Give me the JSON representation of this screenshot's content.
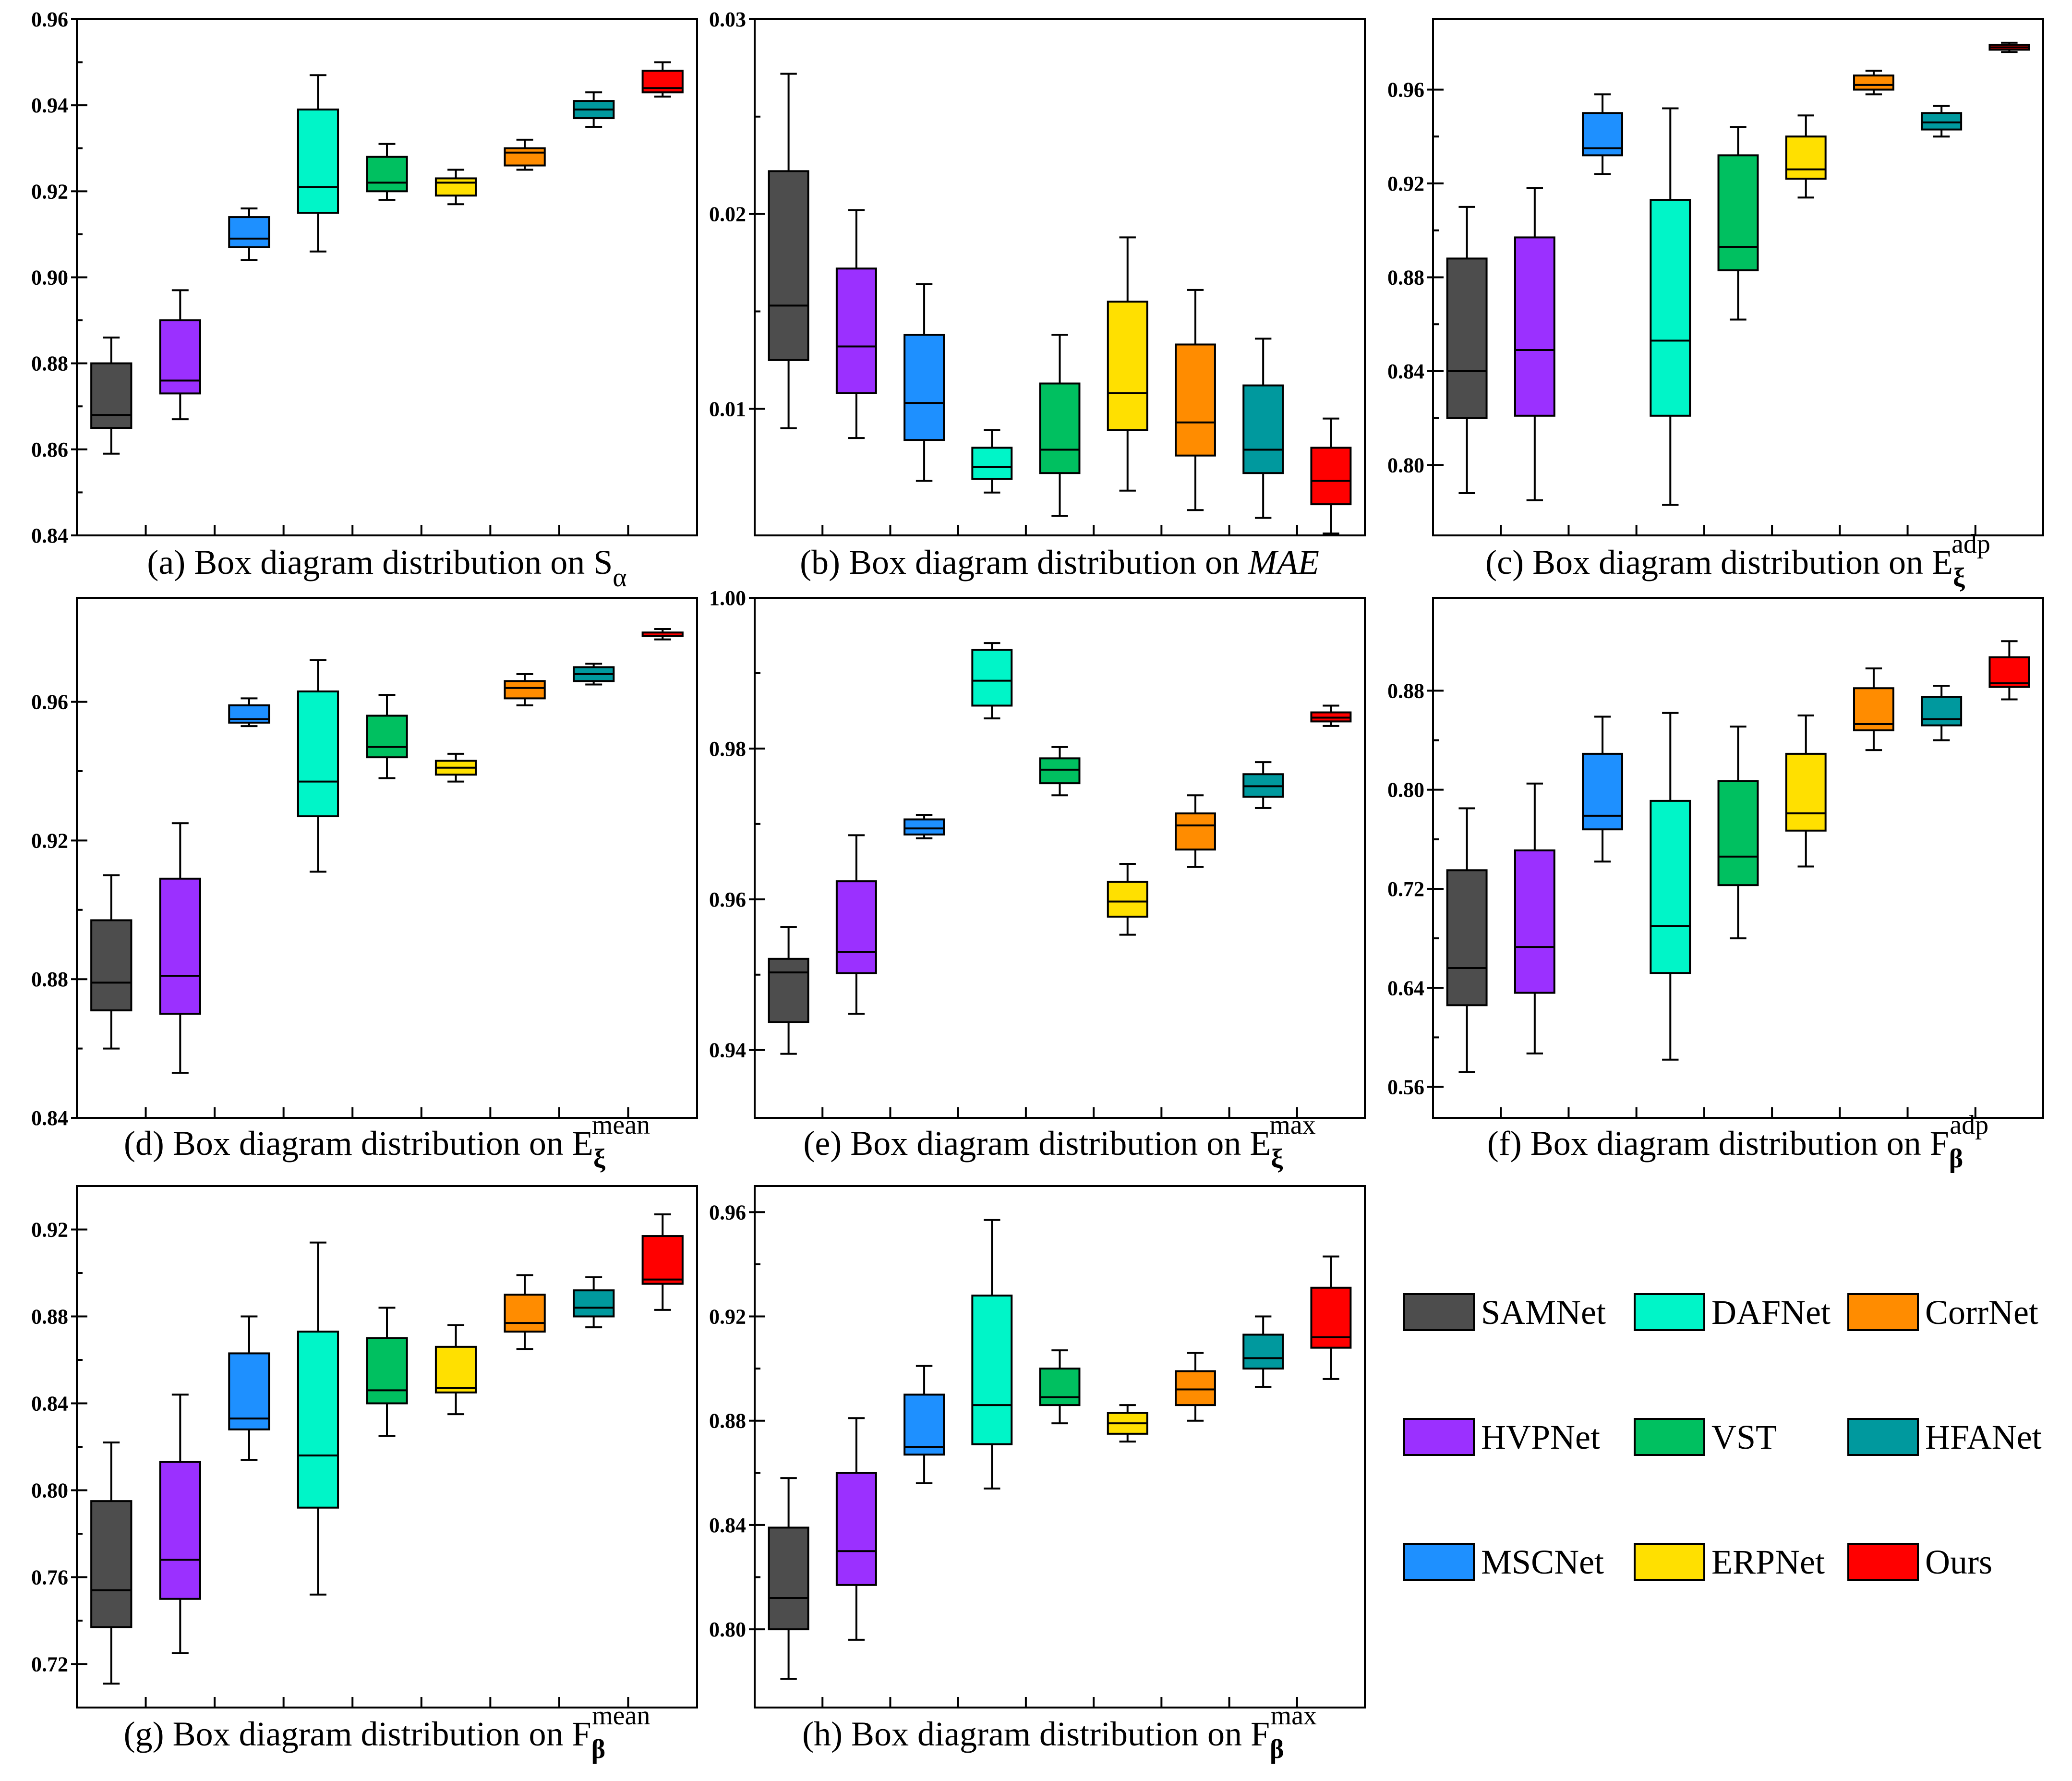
{
  "methods": [
    {
      "name": "SAMNet",
      "color": "#4d4d4d"
    },
    {
      "name": "HVPNet",
      "color": "#9b30ff"
    },
    {
      "name": "MSCNet",
      "color": "#1e90ff"
    },
    {
      "name": "DAFNet",
      "color": "#00f5c8"
    },
    {
      "name": "VST",
      "color": "#00c060"
    },
    {
      "name": "ERPNet",
      "color": "#ffe000"
    },
    {
      "name": "CorrNet",
      "color": "#ff8c00"
    },
    {
      "name": "HFANet",
      "color": "#00999e"
    },
    {
      "name": "Ours",
      "color": "#ff0000"
    }
  ],
  "legend": {
    "columns": [
      [
        "SAMNet",
        "HVPNet",
        "MSCNet"
      ],
      [
        "DAFNet",
        "VST",
        "ERPNet"
      ],
      [
        "CorrNet",
        "HFANet",
        "Ours"
      ]
    ]
  },
  "chart_data": [
    {
      "type": "box",
      "id": "a",
      "caption": {
        "prefix": "(a) Box diagram distribution on ",
        "symbol": "S",
        "sub": "α",
        "sup": ""
      },
      "ylim": [
        0.84,
        0.96
      ],
      "yticks": [
        0.84,
        0.86,
        0.88,
        0.9,
        0.92,
        0.94,
        0.96
      ],
      "ytick_labels": [
        "0.84",
        "0.86",
        "0.88",
        "0.90",
        "0.92",
        "0.94",
        "0.96"
      ],
      "boxes": [
        [
          0.859,
          0.865,
          0.868,
          0.88,
          0.886
        ],
        [
          0.867,
          0.873,
          0.876,
          0.89,
          0.897
        ],
        [
          0.904,
          0.907,
          0.909,
          0.914,
          0.916
        ],
        [
          0.906,
          0.915,
          0.921,
          0.939,
          0.947
        ],
        [
          0.918,
          0.92,
          0.922,
          0.928,
          0.931
        ],
        [
          0.917,
          0.919,
          0.922,
          0.923,
          0.925
        ],
        [
          0.925,
          0.926,
          0.929,
          0.93,
          0.932
        ],
        [
          0.935,
          0.937,
          0.939,
          0.941,
          0.943
        ],
        [
          0.942,
          0.943,
          0.944,
          0.948,
          0.95
        ]
      ]
    },
    {
      "type": "box",
      "id": "b",
      "caption": {
        "prefix": "(b) Box diagram distribution on ",
        "symbol": "MAE",
        "sub": "",
        "sup": "",
        "italic": true
      },
      "ylim": [
        0.0035,
        0.03
      ],
      "yticks": [
        0.01,
        0.02,
        0.03
      ],
      "ytick_labels": [
        "0.01",
        "0.02",
        "0.03"
      ],
      "boxes": [
        [
          0.009,
          0.0125,
          0.0153,
          0.0222,
          0.0272
        ],
        [
          0.0085,
          0.0108,
          0.0132,
          0.0172,
          0.0202
        ],
        [
          0.0063,
          0.0084,
          0.0103,
          0.0138,
          0.0164
        ],
        [
          0.0057,
          0.0064,
          0.007,
          0.008,
          0.0089
        ],
        [
          0.0045,
          0.0067,
          0.0079,
          0.0113,
          0.0138
        ],
        [
          0.0058,
          0.0089,
          0.0108,
          0.0155,
          0.0188
        ],
        [
          0.0048,
          0.0076,
          0.0093,
          0.0133,
          0.0161
        ],
        [
          0.0044,
          0.0067,
          0.0079,
          0.0112,
          0.0136
        ],
        [
          0.0036,
          0.0051,
          0.0063,
          0.008,
          0.0095
        ]
      ]
    },
    {
      "type": "box",
      "id": "c",
      "caption": {
        "prefix": "(c) Box diagram distribution on ",
        "symbol": "E",
        "sub": "ξ",
        "sup": "adp"
      },
      "ylim": [
        0.77,
        0.99
      ],
      "yticks": [
        0.8,
        0.84,
        0.88,
        0.92,
        0.96
      ],
      "ytick_labels": [
        "0.80",
        "0.84",
        "0.88",
        "0.92",
        "0.96"
      ],
      "boxes": [
        [
          0.788,
          0.82,
          0.84,
          0.888,
          0.91
        ],
        [
          0.785,
          0.821,
          0.849,
          0.897,
          0.918
        ],
        [
          0.924,
          0.932,
          0.935,
          0.95,
          0.958
        ],
        [
          0.783,
          0.821,
          0.853,
          0.913,
          0.952
        ],
        [
          0.862,
          0.883,
          0.893,
          0.932,
          0.944
        ],
        [
          0.914,
          0.922,
          0.926,
          0.94,
          0.949
        ],
        [
          0.958,
          0.96,
          0.962,
          0.966,
          0.968
        ],
        [
          0.94,
          0.943,
          0.946,
          0.95,
          0.953
        ],
        [
          0.976,
          0.977,
          0.978,
          0.979,
          0.98
        ]
      ]
    },
    {
      "type": "box",
      "id": "d",
      "caption": {
        "prefix": "(d) Box diagram distribution on ",
        "symbol": "E",
        "sub": "ξ",
        "sup": "mean"
      },
      "ylim": [
        0.84,
        0.99
      ],
      "yticks": [
        0.84,
        0.88,
        0.92,
        0.96
      ],
      "ytick_labels": [
        "0.84",
        "0.88",
        "0.92",
        "0.96"
      ],
      "boxes": [
        [
          0.86,
          0.871,
          0.879,
          0.897,
          0.91
        ],
        [
          0.853,
          0.87,
          0.881,
          0.909,
          0.925
        ],
        [
          0.953,
          0.954,
          0.955,
          0.959,
          0.961
        ],
        [
          0.911,
          0.927,
          0.937,
          0.963,
          0.972
        ],
        [
          0.938,
          0.944,
          0.947,
          0.956,
          0.962
        ],
        [
          0.937,
          0.939,
          0.941,
          0.943,
          0.945
        ],
        [
          0.959,
          0.961,
          0.964,
          0.966,
          0.968
        ],
        [
          0.965,
          0.966,
          0.968,
          0.97,
          0.971
        ],
        [
          0.978,
          0.979,
          0.979,
          0.98,
          0.981
        ]
      ]
    },
    {
      "type": "box",
      "id": "e",
      "caption": {
        "prefix": "(e) Box diagram distribution on ",
        "symbol": "E",
        "sub": "ξ",
        "sup": "max"
      },
      "ylim": [
        0.931,
        1.0
      ],
      "yticks": [
        0.94,
        0.96,
        0.98,
        1.0
      ],
      "ytick_labels": [
        "0.94",
        "0.96",
        "0.98",
        "1.00"
      ],
      "boxes": [
        [
          0.9395,
          0.9437,
          0.9503,
          0.9521,
          0.9563
        ],
        [
          0.9448,
          0.9502,
          0.953,
          0.9624,
          0.9685
        ],
        [
          0.9681,
          0.9686,
          0.9694,
          0.9706,
          0.9712
        ],
        [
          0.984,
          0.9857,
          0.989,
          0.9931,
          0.994
        ],
        [
          0.9738,
          0.9754,
          0.9772,
          0.9787,
          0.9802
        ],
        [
          0.9553,
          0.9577,
          0.9597,
          0.9623,
          0.9647
        ],
        [
          0.9643,
          0.9666,
          0.9698,
          0.9714,
          0.9738
        ],
        [
          0.9721,
          0.9736,
          0.975,
          0.9766,
          0.9782
        ],
        [
          0.983,
          0.9836,
          0.9841,
          0.9848,
          0.9857
        ]
      ]
    },
    {
      "type": "box",
      "id": "f",
      "caption": {
        "prefix": "(f) Box diagram distribution on ",
        "symbol": "F",
        "sub": "β",
        "sup": "adp"
      },
      "ylim": [
        0.535,
        0.955
      ],
      "yticks": [
        0.56,
        0.64,
        0.72,
        0.8,
        0.88
      ],
      "ytick_labels": [
        "0.56",
        "0.64",
        "0.72",
        "0.80",
        "0.88"
      ],
      "boxes": [
        [
          0.572,
          0.626,
          0.656,
          0.735,
          0.785
        ],
        [
          0.587,
          0.636,
          0.673,
          0.751,
          0.805
        ],
        [
          0.742,
          0.768,
          0.779,
          0.829,
          0.859
        ],
        [
          0.582,
          0.652,
          0.69,
          0.791,
          0.862
        ],
        [
          0.68,
          0.723,
          0.746,
          0.807,
          0.851
        ],
        [
          0.738,
          0.767,
          0.781,
          0.829,
          0.86
        ],
        [
          0.832,
          0.848,
          0.853,
          0.882,
          0.898
        ],
        [
          0.84,
          0.852,
          0.857,
          0.875,
          0.884
        ],
        [
          0.873,
          0.883,
          0.886,
          0.907,
          0.92
        ]
      ]
    },
    {
      "type": "box",
      "id": "g",
      "caption": {
        "prefix": "(g) Box diagram distribution on ",
        "symbol": "F",
        "sub": "β",
        "sup": "mean"
      },
      "ylim": [
        0.7,
        0.94
      ],
      "yticks": [
        0.72,
        0.76,
        0.8,
        0.84,
        0.88,
        0.92
      ],
      "ytick_labels": [
        "0.72",
        "0.76",
        "0.80",
        "0.84",
        "0.88",
        "0.92"
      ],
      "boxes": [
        [
          0.711,
          0.737,
          0.754,
          0.795,
          0.822
        ],
        [
          0.725,
          0.75,
          0.768,
          0.813,
          0.844
        ],
        [
          0.814,
          0.828,
          0.833,
          0.863,
          0.88
        ],
        [
          0.752,
          0.792,
          0.816,
          0.873,
          0.914
        ],
        [
          0.825,
          0.84,
          0.846,
          0.87,
          0.884
        ],
        [
          0.835,
          0.845,
          0.847,
          0.866,
          0.876
        ],
        [
          0.865,
          0.873,
          0.877,
          0.89,
          0.899
        ],
        [
          0.875,
          0.88,
          0.884,
          0.892,
          0.898
        ],
        [
          0.883,
          0.895,
          0.897,
          0.917,
          0.927
        ]
      ]
    },
    {
      "type": "box",
      "id": "h",
      "caption": {
        "prefix": "(h) Box diagram distribution on ",
        "symbol": "F",
        "sub": "β",
        "sup": "max"
      },
      "ylim": [
        0.77,
        0.97
      ],
      "yticks": [
        0.8,
        0.84,
        0.88,
        0.92,
        0.96
      ],
      "ytick_labels": [
        "0.80",
        "0.84",
        "0.88",
        "0.92",
        "0.96"
      ],
      "boxes": [
        [
          0.781,
          0.8,
          0.812,
          0.839,
          0.858
        ],
        [
          0.796,
          0.817,
          0.83,
          0.86,
          0.881
        ],
        [
          0.856,
          0.867,
          0.87,
          0.89,
          0.901
        ],
        [
          0.854,
          0.871,
          0.886,
          0.928,
          0.957
        ],
        [
          0.879,
          0.886,
          0.889,
          0.9,
          0.907
        ],
        [
          0.872,
          0.875,
          0.879,
          0.883,
          0.886
        ],
        [
          0.88,
          0.886,
          0.892,
          0.899,
          0.906
        ],
        [
          0.893,
          0.9,
          0.904,
          0.913,
          0.92
        ],
        [
          0.896,
          0.908,
          0.912,
          0.931,
          0.943
        ]
      ]
    }
  ]
}
